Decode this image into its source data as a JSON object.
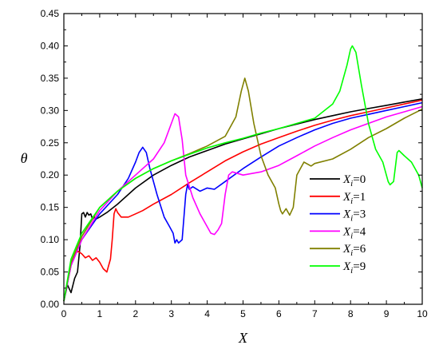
{
  "chart_data": {
    "type": "line",
    "xlabel": "X",
    "ylabel": "θ",
    "xlim": [
      0,
      10
    ],
    "ylim": [
      0,
      0.45
    ],
    "xticks": [
      "0",
      "1",
      "2",
      "3",
      "4",
      "5",
      "6",
      "7",
      "8",
      "9",
      "10"
    ],
    "yticks": [
      "0.00",
      "0.05",
      "0.10",
      "0.15",
      "0.20",
      "0.25",
      "0.30",
      "0.35",
      "0.40",
      "0.45"
    ],
    "legend_position": "right-center",
    "series": [
      {
        "name_base": "X",
        "name_sub": "i",
        "name_value": "=0",
        "color": "#000000",
        "x": [
          0.0,
          0.1,
          0.2,
          0.3,
          0.38,
          0.45,
          0.5,
          0.55,
          0.6,
          0.65,
          0.7,
          0.75,
          0.8,
          0.85,
          0.9,
          1.0,
          1.2,
          1.5,
          2.0,
          2.5,
          3.0,
          3.5,
          4.0,
          4.5,
          5.0,
          5.5,
          6.0,
          6.5,
          7.0,
          7.5,
          8.0,
          8.5,
          9.0,
          9.5,
          10.0
        ],
        "y": [
          0.005,
          0.03,
          0.018,
          0.04,
          0.05,
          0.09,
          0.14,
          0.142,
          0.135,
          0.142,
          0.138,
          0.14,
          0.132,
          0.135,
          0.132,
          0.135,
          0.142,
          0.155,
          0.18,
          0.2,
          0.215,
          0.228,
          0.238,
          0.248,
          0.256,
          0.264,
          0.272,
          0.279,
          0.286,
          0.292,
          0.298,
          0.303,
          0.308,
          0.313,
          0.318
        ]
      },
      {
        "name_base": "X",
        "name_sub": "i",
        "name_value": "=1",
        "color": "#ff0000",
        "x": [
          0.0,
          0.1,
          0.2,
          0.3,
          0.4,
          0.5,
          0.6,
          0.7,
          0.8,
          0.9,
          1.0,
          1.1,
          1.2,
          1.25,
          1.3,
          1.35,
          1.4,
          1.45,
          1.5,
          1.6,
          1.8,
          2.0,
          2.2,
          2.5,
          3.0,
          3.5,
          4.0,
          4.5,
          5.0,
          5.5,
          6.0,
          6.5,
          7.0,
          7.5,
          8.0,
          8.5,
          9.0,
          9.5,
          10.0
        ],
        "y": [
          0.005,
          0.035,
          0.06,
          0.078,
          0.082,
          0.078,
          0.072,
          0.075,
          0.068,
          0.072,
          0.065,
          0.055,
          0.05,
          0.06,
          0.07,
          0.1,
          0.14,
          0.148,
          0.142,
          0.135,
          0.135,
          0.14,
          0.145,
          0.155,
          0.17,
          0.188,
          0.205,
          0.222,
          0.236,
          0.248,
          0.258,
          0.268,
          0.277,
          0.285,
          0.292,
          0.298,
          0.304,
          0.31,
          0.316
        ]
      },
      {
        "name_base": "X",
        "name_sub": "i",
        "name_value": "=3",
        "color": "#0000ff",
        "x": [
          0.0,
          0.2,
          0.5,
          1.0,
          1.5,
          1.8,
          2.0,
          2.1,
          2.2,
          2.3,
          2.4,
          2.6,
          2.8,
          2.95,
          3.05,
          3.1,
          3.15,
          3.2,
          3.3,
          3.4,
          3.45,
          3.5,
          3.6,
          3.8,
          4.0,
          4.2,
          4.5,
          5.0,
          5.5,
          6.0,
          6.5,
          7.0,
          7.5,
          8.0,
          8.5,
          9.0,
          9.5,
          10.0
        ],
        "y": [
          0.005,
          0.06,
          0.1,
          0.14,
          0.17,
          0.195,
          0.22,
          0.235,
          0.243,
          0.235,
          0.21,
          0.17,
          0.135,
          0.12,
          0.11,
          0.095,
          0.1,
          0.095,
          0.1,
          0.17,
          0.185,
          0.178,
          0.182,
          0.175,
          0.18,
          0.178,
          0.19,
          0.21,
          0.228,
          0.245,
          0.258,
          0.27,
          0.28,
          0.288,
          0.294,
          0.3,
          0.306,
          0.312
        ]
      },
      {
        "name_base": "X",
        "name_sub": "i",
        "name_value": "=4",
        "color": "#ff00ff",
        "x": [
          0.0,
          0.2,
          0.5,
          1.0,
          1.5,
          2.0,
          2.5,
          2.8,
          3.0,
          3.1,
          3.2,
          3.3,
          3.4,
          3.6,
          3.8,
          4.0,
          4.1,
          4.2,
          4.3,
          4.4,
          4.5,
          4.6,
          4.7,
          5.0,
          5.5,
          6.0,
          6.5,
          7.0,
          7.5,
          8.0,
          8.5,
          9.0,
          9.5,
          10.0
        ],
        "y": [
          0.005,
          0.06,
          0.1,
          0.145,
          0.175,
          0.2,
          0.225,
          0.25,
          0.28,
          0.295,
          0.29,
          0.255,
          0.2,
          0.165,
          0.14,
          0.12,
          0.11,
          0.108,
          0.115,
          0.125,
          0.17,
          0.2,
          0.205,
          0.2,
          0.205,
          0.215,
          0.23,
          0.245,
          0.258,
          0.27,
          0.28,
          0.29,
          0.298,
          0.306
        ]
      },
      {
        "name_base": "X",
        "name_sub": "i",
        "name_value": "=6",
        "color": "#808000",
        "x": [
          0.0,
          0.2,
          0.5,
          1.0,
          1.5,
          2.0,
          2.5,
          3.0,
          3.5,
          4.0,
          4.5,
          4.8,
          4.95,
          5.05,
          5.15,
          5.3,
          5.5,
          5.7,
          5.9,
          6.0,
          6.05,
          6.1,
          6.2,
          6.3,
          6.4,
          6.5,
          6.6,
          6.7,
          6.9,
          7.0,
          7.5,
          8.0,
          8.5,
          9.0,
          9.5,
          10.0
        ],
        "y": [
          0.005,
          0.065,
          0.105,
          0.15,
          0.175,
          0.195,
          0.21,
          0.222,
          0.233,
          0.245,
          0.26,
          0.29,
          0.33,
          0.35,
          0.33,
          0.28,
          0.23,
          0.2,
          0.18,
          0.155,
          0.145,
          0.14,
          0.148,
          0.138,
          0.15,
          0.2,
          0.21,
          0.22,
          0.214,
          0.218,
          0.225,
          0.24,
          0.258,
          0.272,
          0.288,
          0.302
        ]
      },
      {
        "name_base": "X",
        "name_sub": "i",
        "name_value": "=9",
        "color": "#00ff00",
        "x": [
          0.0,
          0.2,
          0.5,
          1.0,
          1.5,
          2.0,
          2.5,
          3.0,
          3.5,
          4.0,
          4.5,
          5.0,
          5.5,
          6.0,
          6.5,
          7.0,
          7.5,
          7.7,
          7.9,
          8.0,
          8.05,
          8.15,
          8.3,
          8.5,
          8.7,
          8.9,
          9.05,
          9.1,
          9.2,
          9.3,
          9.35,
          9.5,
          9.7,
          9.9,
          10.0
        ],
        "y": [
          0.005,
          0.07,
          0.11,
          0.15,
          0.175,
          0.195,
          0.21,
          0.222,
          0.232,
          0.242,
          0.25,
          0.257,
          0.265,
          0.272,
          0.28,
          0.288,
          0.31,
          0.33,
          0.37,
          0.395,
          0.4,
          0.39,
          0.34,
          0.28,
          0.24,
          0.22,
          0.19,
          0.185,
          0.19,
          0.235,
          0.238,
          0.23,
          0.22,
          0.2,
          0.18
        ]
      }
    ]
  }
}
